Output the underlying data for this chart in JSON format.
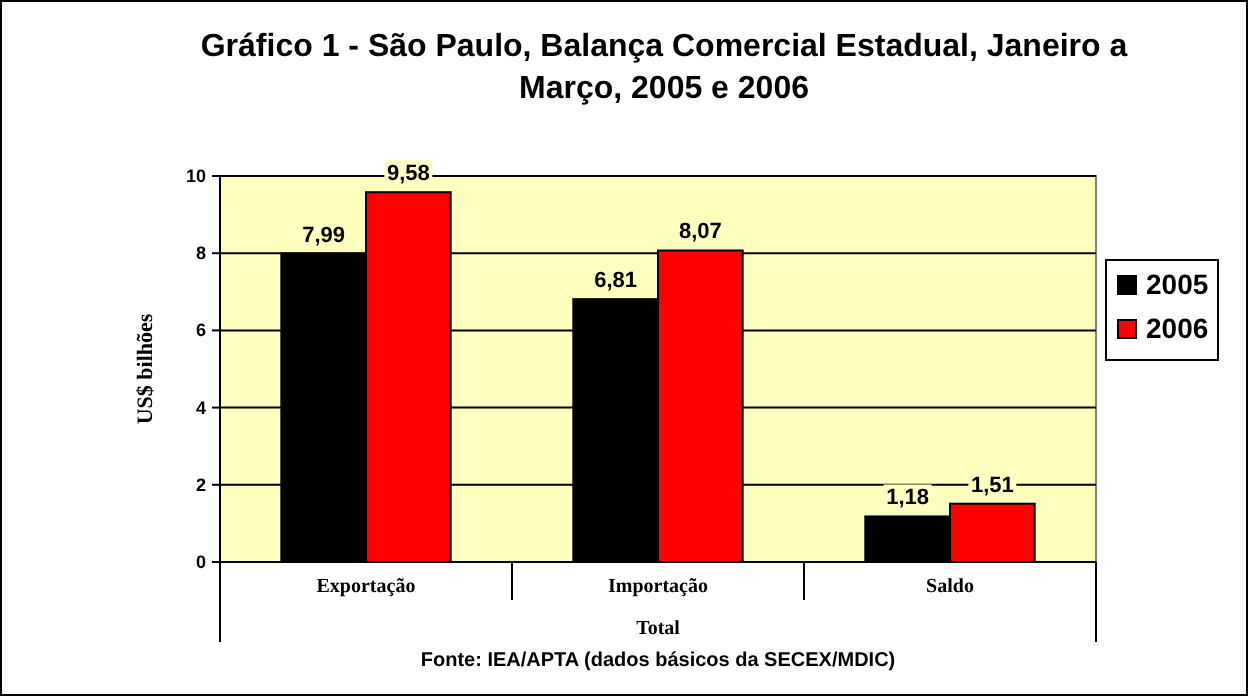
{
  "chart_data": {
    "type": "bar",
    "title": "Gráfico 1 - São Paulo, Balança Comercial Estadual, Janeiro a Março, 2005 e 2006",
    "ylabel": "US$ bilhões",
    "xlabel": "Total",
    "categories": [
      "Exportação",
      "Importação",
      "Saldo"
    ],
    "series": [
      {
        "name": "2005",
        "color": "#000000",
        "values": [
          7.99,
          6.81,
          1.18
        ],
        "value_labels": [
          "7,99",
          "6,81",
          "1,18"
        ]
      },
      {
        "name": "2006",
        "color": "#ff0000",
        "values": [
          9.58,
          8.07,
          1.51
        ],
        "value_labels": [
          "9,58",
          "8,07",
          "1,51"
        ]
      }
    ],
    "ylim": [
      0,
      10
    ],
    "yticks": [
      0,
      2,
      4,
      6,
      8,
      10
    ],
    "grid": "y",
    "legend": "right",
    "annotations": [
      "Fonte: IEA/APTA (dados básicos da SECEX/MDIC)"
    ]
  }
}
